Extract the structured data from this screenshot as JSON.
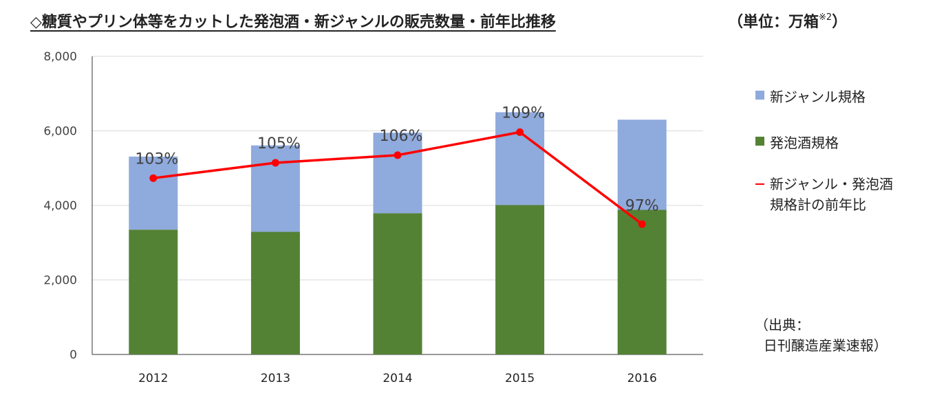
{
  "title": "◇糖質やプリン体等をカットした発泡酒・新ジャンルの販売数量・前年比推移",
  "unit_label": "（単位：万箱",
  "unit_sup": "※2",
  "unit_close": "）",
  "legend": {
    "new_genre": "新ジャンル規格",
    "happoshu": "発泡酒規格",
    "yoy": "新ジャンル・発泡酒\n規格計の前年比"
  },
  "source": "（出典：\n  日刊醸造産業速報）",
  "colors": {
    "new_genre": "#8faadc",
    "happoshu": "#548235",
    "yoy": "#ff0000"
  },
  "chart_data": {
    "type": "bar",
    "stacked": true,
    "categories": [
      "2012",
      "2013",
      "2014",
      "2015",
      "2016"
    ],
    "series": [
      {
        "name": "発泡酒規格",
        "values": [
          3350,
          3290,
          3790,
          4010,
          3880
        ]
      },
      {
        "name": "新ジャンル規格",
        "values": [
          1960,
          2320,
          2160,
          2490,
          2420
        ]
      }
    ],
    "line_series": {
      "name": "新ジャンル・発泡酒規格計の前年比",
      "values": [
        103,
        105,
        106,
        109,
        97
      ],
      "labels": [
        "103%",
        "105%",
        "106%",
        "109%",
        "97%"
      ]
    },
    "yticks": [
      "0",
      "2,000",
      "4,000",
      "6,000",
      "8,000"
    ],
    "ylim": [
      0,
      8000
    ],
    "grid": true,
    "legend": "right"
  }
}
